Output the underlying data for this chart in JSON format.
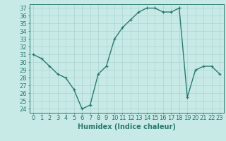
{
  "x": [
    0,
    1,
    2,
    3,
    4,
    5,
    6,
    7,
    8,
    9,
    10,
    11,
    12,
    13,
    14,
    15,
    16,
    17,
    18,
    19,
    20,
    21,
    22,
    23
  ],
  "y": [
    31.0,
    30.5,
    29.5,
    28.5,
    28.0,
    26.5,
    24.0,
    24.5,
    28.5,
    29.5,
    33.0,
    34.5,
    35.5,
    36.5,
    37.0,
    37.0,
    36.5,
    36.5,
    37.0,
    25.5,
    29.0,
    29.5,
    29.5,
    28.5
  ],
  "xlabel": "Humidex (Indice chaleur)",
  "ylabel": "",
  "line_color": "#2a7a6f",
  "marker": "+",
  "bg_color": "#c8eae6",
  "grid_color": "#aad4ce",
  "ylim": [
    23.5,
    37.5
  ],
  "xlim": [
    -0.5,
    23.5
  ],
  "yticks": [
    24,
    25,
    26,
    27,
    28,
    29,
    30,
    31,
    32,
    33,
    34,
    35,
    36,
    37
  ],
  "xticks": [
    0,
    1,
    2,
    3,
    4,
    5,
    6,
    7,
    8,
    9,
    10,
    11,
    12,
    13,
    14,
    15,
    16,
    17,
    18,
    19,
    20,
    21,
    22,
    23
  ],
  "tick_color": "#2a7a6f",
  "label_color": "#2a7a6f",
  "fontsize_axis": 6,
  "fontsize_xlabel": 7,
  "linewidth": 1.0,
  "markersize": 3.5
}
